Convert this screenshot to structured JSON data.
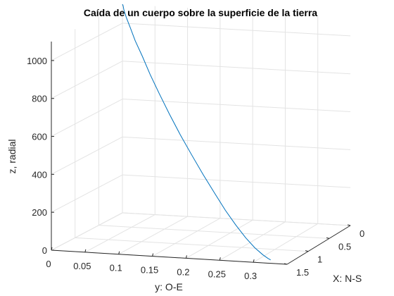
{
  "chart_data": {
    "type": "line",
    "projection": "3d",
    "title": "Caída de un cuerpo sobre la superficie de la tierra",
    "xlabel": "X: N-S",
    "ylabel": "y: O-E",
    "zlabel": "z, radial",
    "xlim": [
      0,
      1.5
    ],
    "ylim": [
      0,
      0.35
    ],
    "zlim": [
      0,
      1100
    ],
    "x_ticks": [
      0,
      0.5,
      1,
      1.5
    ],
    "x_tick_labels": [
      "0",
      "0.5",
      "1",
      "1.5"
    ],
    "y_ticks": [
      0,
      0.05,
      0.1,
      0.15,
      0.2,
      0.25,
      0.3
    ],
    "y_tick_labels": [
      "0",
      "0.05",
      "0.1",
      "0.15",
      "0.2",
      "0.25",
      "0.3"
    ],
    "z_ticks": [
      0,
      200,
      400,
      600,
      800,
      1000
    ],
    "z_tick_labels": [
      "0",
      "200",
      "400",
      "600",
      "800",
      "1000"
    ],
    "grid": true,
    "series": [
      {
        "color": "#0072BD",
        "x": [
          0,
          0,
          0.01,
          0.03,
          0.07,
          0.13,
          0.2,
          0.3,
          0.4,
          0.51,
          0.62,
          0.73,
          0.83,
          0.93,
          1.02,
          1.1,
          1.18,
          1.25,
          1.31,
          1.35,
          1.38
        ],
        "y": [
          0,
          0.001,
          0.003,
          0.008,
          0.017,
          0.029,
          0.045,
          0.064,
          0.085,
          0.108,
          0.132,
          0.157,
          0.181,
          0.205,
          0.227,
          0.248,
          0.268,
          0.286,
          0.302,
          0.312,
          0.318
        ],
        "z": [
          1100,
          1093,
          1072,
          1037,
          990,
          930,
          860,
          781,
          697,
          609,
          520,
          432,
          347,
          267,
          194,
          131,
          79,
          40,
          14,
          3,
          0
        ]
      }
    ]
  }
}
